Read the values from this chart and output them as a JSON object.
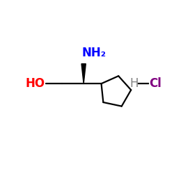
{
  "background_color": "#ffffff",
  "bond_color": "#000000",
  "ho_color": "#ff0000",
  "nh2_color": "#0000ff",
  "h_color": "#808080",
  "cl_color": "#800080",
  "ho_text": "HO",
  "nh2_text": "NH₂",
  "h_text": "H",
  "cl_text": "Cl",
  "fig_width": 2.5,
  "fig_height": 2.5,
  "dpi": 100,
  "lw": 1.6
}
